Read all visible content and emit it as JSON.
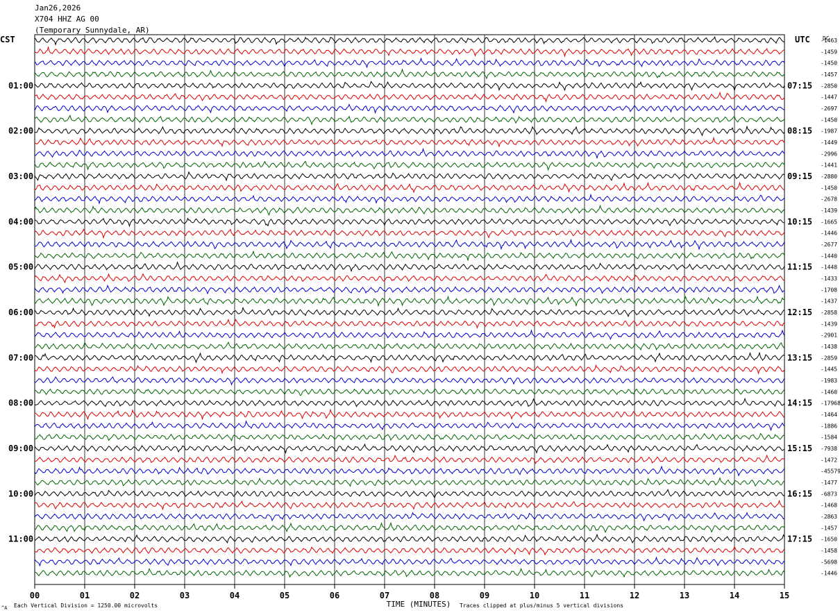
{
  "header": {
    "date": "Jan26,2026",
    "station": "X704 HHZ AG 00",
    "location": "(Temporary Sunnydale, AR)"
  },
  "chart_data": {
    "type": "line",
    "left_timezone": "CST",
    "right_timezone": "UTC",
    "right_column_label": "DC",
    "xlabel": "TIME (MINUTES)",
    "xlim": [
      0,
      15
    ],
    "x_ticks": [
      "00",
      "01",
      "02",
      "03",
      "04",
      "05",
      "06",
      "07",
      "08",
      "09",
      "10",
      "11",
      "12",
      "13",
      "14",
      "15"
    ],
    "left_hour_labels": [
      "01:00",
      "02:00",
      "03:00",
      "04:00",
      "05:00",
      "06:00",
      "07:00",
      "08:00",
      "09:00",
      "10:00",
      "11:00"
    ],
    "right_hour_labels": [
      "07:15",
      "08:15",
      "09:15",
      "10:15",
      "11:15",
      "12:15",
      "13:15",
      "14:15",
      "15:15",
      "16:15",
      "17:15"
    ],
    "trace_colors": [
      "#000000",
      "#dd0000",
      "#0000cc",
      "#006400"
    ],
    "dc_offsets": [
      "-1463",
      "-1459",
      "-1450",
      "-1457",
      "-2850",
      "-1447",
      "-2697",
      "-1450",
      "-1987",
      "-1449",
      "-2996",
      "-1441",
      "-2880",
      "-1450",
      "-2678",
      "-1439",
      "-1665",
      "-1446",
      "-2677",
      "-1440",
      "-1448",
      "-1433",
      "-1708",
      "-1437",
      "-2858",
      "-1439",
      "-2901",
      "-1438",
      "-2859",
      "-1445",
      "-1983",
      "-1460",
      "-17968",
      "-1464",
      "-1886",
      "-1584",
      "-7938",
      "-1472",
      "-45579",
      "-1477",
      "-6873",
      "-1468",
      "-2863",
      "-1457",
      "-1650",
      "-1458",
      "-5698",
      "-1446"
    ],
    "footer_scale": "Each Vertical Division = 1250.00 microvolts",
    "footer_clip": "Traces clipped at plus/minus 5 vertical divisions",
    "corner_mark": "^A"
  }
}
